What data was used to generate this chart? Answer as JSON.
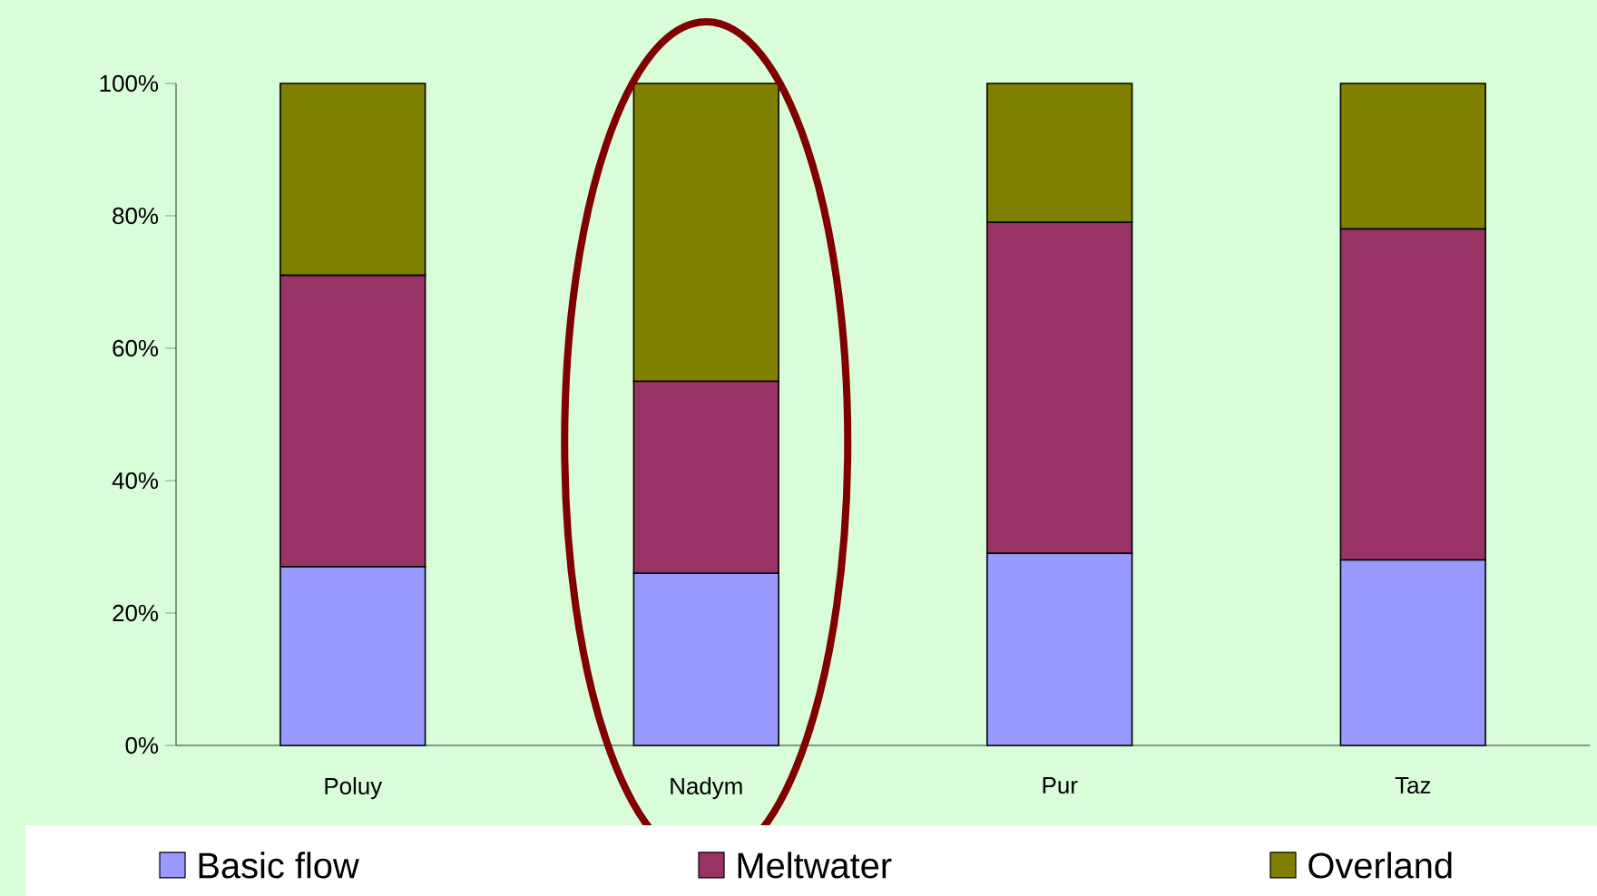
{
  "chart_data": {
    "type": "bar",
    "stacked": true,
    "categories": [
      "Poluy",
      "Nadym",
      "Pur",
      "Taz"
    ],
    "series": [
      {
        "name": "Basic flow",
        "color": "#9999ff",
        "values": [
          27,
          26,
          29,
          28
        ]
      },
      {
        "name": "Meltwater",
        "color": "#993366",
        "values": [
          44,
          29,
          50,
          50
        ]
      },
      {
        "name": "Overland",
        "color": "#808000",
        "values": [
          29,
          45,
          21,
          22
        ]
      }
    ],
    "ylim": [
      0,
      100
    ],
    "yticks": [
      {
        "value": 0,
        "label": "0%"
      },
      {
        "value": 20,
        "label": "20%"
      },
      {
        "value": 40,
        "label": "40%"
      },
      {
        "value": 60,
        "label": "60%"
      },
      {
        "value": 80,
        "label": "80%"
      },
      {
        "value": 100,
        "label": "100%"
      }
    ],
    "grid": false,
    "legend": "bottom"
  }
}
